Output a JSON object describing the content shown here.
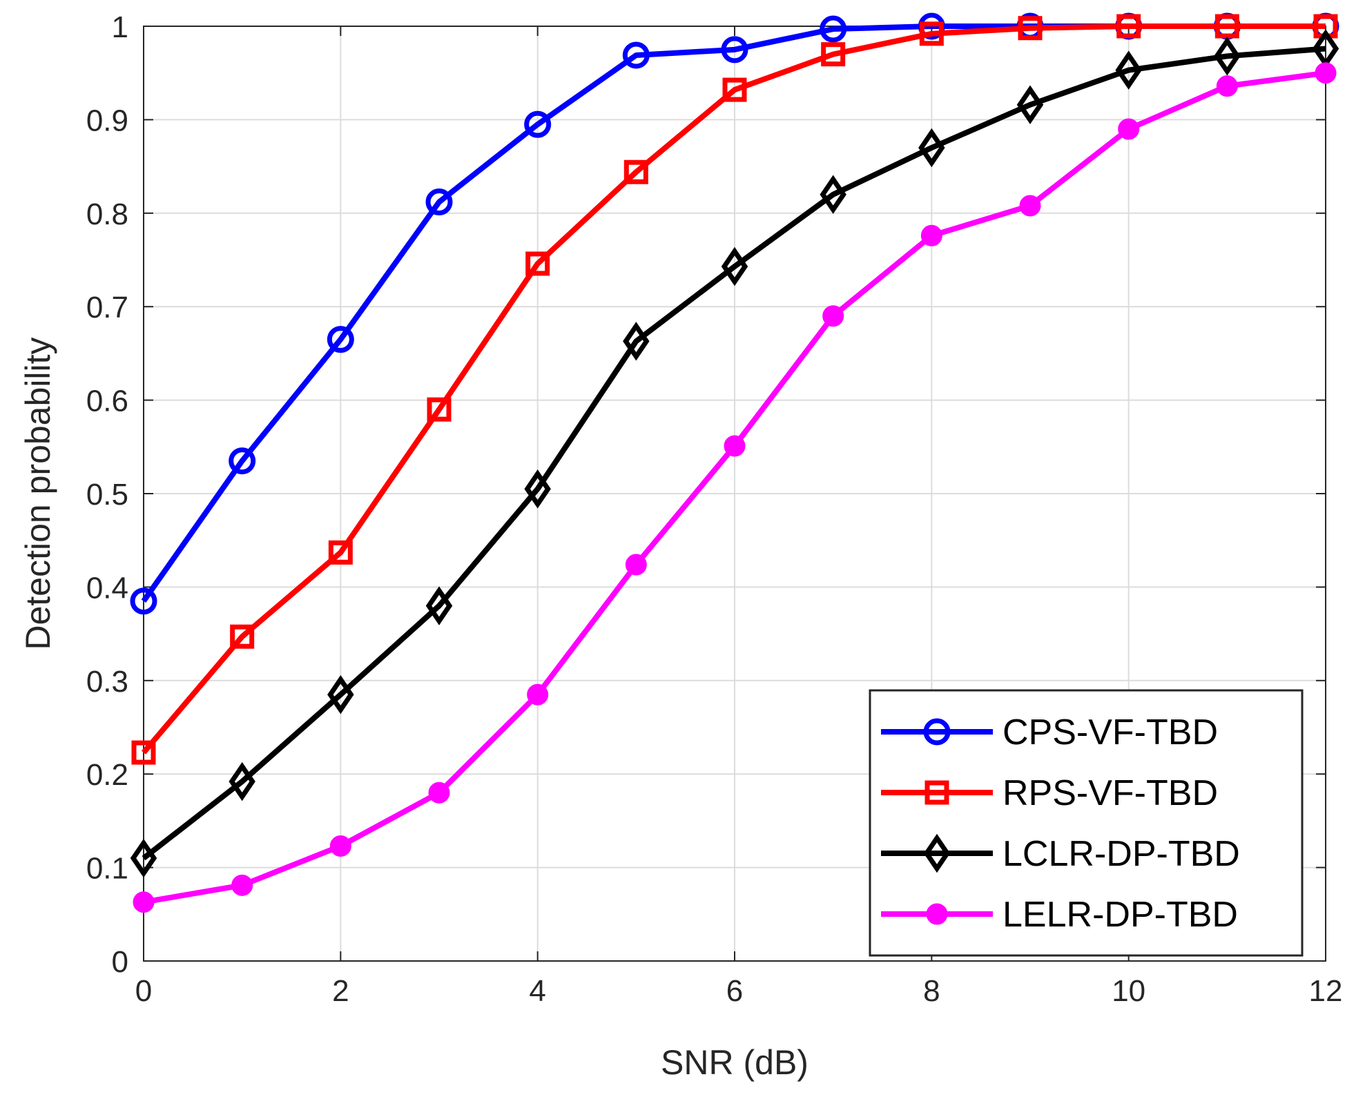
{
  "chart_data": {
    "type": "line",
    "title": "",
    "xlabel": "SNR (dB)",
    "ylabel": "Detection probability",
    "x": [
      0,
      1,
      2,
      3,
      4,
      5,
      6,
      7,
      8,
      9,
      10,
      11,
      12
    ],
    "xlim": [
      0,
      12
    ],
    "ylim": [
      0,
      1
    ],
    "xticks": [
      0,
      2,
      4,
      6,
      8,
      10,
      12
    ],
    "xtick_labels": [
      "0",
      "2",
      "4",
      "6",
      "8",
      "10",
      "12"
    ],
    "yticks": [
      0,
      0.1,
      0.2,
      0.3,
      0.4,
      0.5,
      0.6,
      0.7,
      0.8,
      0.9,
      1
    ],
    "ytick_labels": [
      "0",
      "0.1",
      "0.2",
      "0.3",
      "0.4",
      "0.5",
      "0.6",
      "0.7",
      "0.8",
      "0.9",
      "1"
    ],
    "grid": true,
    "legend_position": "bottom-right",
    "series": [
      {
        "name": "CPS-VF-TBD",
        "color": "#0000ff",
        "marker": "circle",
        "values": [
          0.385,
          0.535,
          0.665,
          0.812,
          0.895,
          0.969,
          0.975,
          0.997,
          1.0,
          1.0,
          1.0,
          1.0,
          1.0
        ]
      },
      {
        "name": "RPS-VF-TBD",
        "color": "#ff0000",
        "marker": "square",
        "values": [
          0.223,
          0.347,
          0.437,
          0.59,
          0.746,
          0.844,
          0.932,
          0.97,
          0.992,
          0.998,
          1.0,
          1.0,
          1.0
        ]
      },
      {
        "name": "LCLR-DP-TBD",
        "color": "#000000",
        "marker": "diamond",
        "values": [
          0.11,
          0.192,
          0.285,
          0.38,
          0.505,
          0.663,
          0.743,
          0.82,
          0.87,
          0.916,
          0.953,
          0.968,
          0.976
        ]
      },
      {
        "name": "LELR-DP-TBD",
        "color": "#ff00ff",
        "marker": "filled-circle",
        "values": [
          0.063,
          0.081,
          0.123,
          0.18,
          0.285,
          0.424,
          0.551,
          0.69,
          0.776,
          0.808,
          0.89,
          0.936,
          0.95
        ]
      }
    ]
  }
}
